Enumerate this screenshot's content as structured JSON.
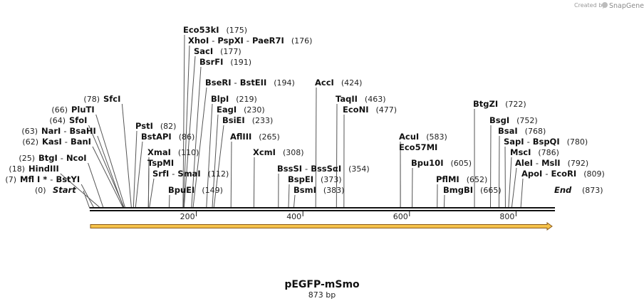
{
  "branding": {
    "prefix": "Created by",
    "name": "SnapGene"
  },
  "map": {
    "title": "pEGFP-mSmo",
    "length_label": "873 bp",
    "length": 873,
    "start_label": "Start",
    "start_pos": "(0)",
    "end_label": "End",
    "end_pos": "(873)",
    "axis_ticks": [
      {
        "value": 200,
        "label": "200"
      },
      {
        "value": 400,
        "label": "400"
      },
      {
        "value": 600,
        "label": "600"
      },
      {
        "value": 800,
        "label": "800"
      }
    ]
  },
  "sites": [
    {
      "side": "left",
      "names": [
        "Mfl I *",
        "BstYI"
      ],
      "pos_label": "(7)",
      "pos": 7
    },
    {
      "side": "left",
      "names": [
        "HindIII"
      ],
      "pos_label": "(18)",
      "pos": 18
    },
    {
      "side": "left",
      "names": [
        "BtgI",
        "NcoI"
      ],
      "pos_label": "(25)",
      "pos": 25
    },
    {
      "side": "left",
      "names": [
        "KasI",
        "BanI"
      ],
      "pos_label": "(62)",
      "pos": 62
    },
    {
      "side": "left",
      "names": [
        "NarI",
        "BsaHI"
      ],
      "pos_label": "(63)",
      "pos": 63
    },
    {
      "side": "left",
      "names": [
        "SfoI"
      ],
      "pos_label": "(64)",
      "pos": 64
    },
    {
      "side": "left",
      "names": [
        "PluTI"
      ],
      "pos_label": "(66)",
      "pos": 66
    },
    {
      "side": "left",
      "names": [
        "SfcI"
      ],
      "pos_label": "(78)",
      "pos": 78
    },
    {
      "side": "right",
      "names": [
        "PstI"
      ],
      "pos_label": "(82)",
      "pos": 82
    },
    {
      "side": "right",
      "names": [
        "BstAPI"
      ],
      "pos_label": "(86)",
      "pos": 86
    },
    {
      "side": "right",
      "names": [
        "XmaI"
      ],
      "pos_label": "(110)",
      "pos": 110
    },
    {
      "side": "right",
      "names": [
        "TspMI"
      ],
      "pos_label": "",
      "pos": 110
    },
    {
      "side": "right",
      "names": [
        "SrfI",
        "SmaI"
      ],
      "pos_label": "(112)",
      "pos": 112
    },
    {
      "side": "right",
      "names": [
        "BpuEI"
      ],
      "pos_label": "(149)",
      "pos": 149
    },
    {
      "side": "right",
      "names": [
        "Eco53kI"
      ],
      "pos_label": "(175)",
      "pos": 175
    },
    {
      "side": "right",
      "names": [
        "XhoI",
        "PspXI",
        "PaeR7I"
      ],
      "pos_label": "(176)",
      "pos": 176
    },
    {
      "side": "right",
      "names": [
        "SacI"
      ],
      "pos_label": "(177)",
      "pos": 177
    },
    {
      "side": "right",
      "names": [
        "BsrFI"
      ],
      "pos_label": "(191)",
      "pos": 191
    },
    {
      "side": "right",
      "names": [
        "BseRI",
        "BstEII"
      ],
      "pos_label": "(194)",
      "pos": 194
    },
    {
      "side": "right",
      "names": [
        "BlpI"
      ],
      "pos_label": "(219)",
      "pos": 219
    },
    {
      "side": "right",
      "names": [
        "EagI"
      ],
      "pos_label": "(230)",
      "pos": 230
    },
    {
      "side": "right",
      "names": [
        "BsiEI"
      ],
      "pos_label": "(233)",
      "pos": 233
    },
    {
      "side": "right",
      "names": [
        "AflIII"
      ],
      "pos_label": "(265)",
      "pos": 265
    },
    {
      "side": "right",
      "names": [
        "XcmI"
      ],
      "pos_label": "(308)",
      "pos": 308
    },
    {
      "side": "right",
      "names": [
        "BssSI",
        "BssSαI"
      ],
      "pos_label": "(354)",
      "pos": 354
    },
    {
      "side": "right",
      "names": [
        "BspEI"
      ],
      "pos_label": "(373)",
      "pos": 373
    },
    {
      "side": "right",
      "names": [
        "BsmI"
      ],
      "pos_label": "(383)",
      "pos": 383
    },
    {
      "side": "right",
      "names": [
        "AccI"
      ],
      "pos_label": "(424)",
      "pos": 424
    },
    {
      "side": "right",
      "names": [
        "TaqII"
      ],
      "pos_label": "(463)",
      "pos": 463
    },
    {
      "side": "right",
      "names": [
        "EcoNI"
      ],
      "pos_label": "(477)",
      "pos": 477
    },
    {
      "side": "right",
      "names": [
        "AcuI"
      ],
      "pos_label": "(583)",
      "pos": 583
    },
    {
      "side": "right",
      "names": [
        "Eco57MI"
      ],
      "pos_label": "",
      "pos": 583
    },
    {
      "side": "right",
      "names": [
        "Bpu10I"
      ],
      "pos_label": "(605)",
      "pos": 605
    },
    {
      "side": "right",
      "names": [
        "PflMI"
      ],
      "pos_label": "(652)",
      "pos": 652
    },
    {
      "side": "right",
      "names": [
        "BmgBI"
      ],
      "pos_label": "(665)",
      "pos": 665
    },
    {
      "side": "right",
      "names": [
        "BtgZI"
      ],
      "pos_label": "(722)",
      "pos": 722
    },
    {
      "side": "right",
      "names": [
        "BsgI"
      ],
      "pos_label": "(752)",
      "pos": 752
    },
    {
      "side": "right",
      "names": [
        "BsaI"
      ],
      "pos_label": "(768)",
      "pos": 768
    },
    {
      "side": "right",
      "names": [
        "SapI",
        "BspQI"
      ],
      "pos_label": "(780)",
      "pos": 780
    },
    {
      "side": "right",
      "names": [
        "MscI"
      ],
      "pos_label": "(786)",
      "pos": 786
    },
    {
      "side": "right",
      "names": [
        "AleI",
        "MslI"
      ],
      "pos_label": "(792)",
      "pos": 792
    },
    {
      "side": "right",
      "names": [
        "ApoI",
        "EcoRI"
      ],
      "pos_label": "(809)",
      "pos": 809
    }
  ],
  "colors": {
    "backbone": "#111111",
    "feature_fill": "#f5c24a",
    "feature_stroke": "#8a5a1a",
    "leader": "#555555"
  }
}
